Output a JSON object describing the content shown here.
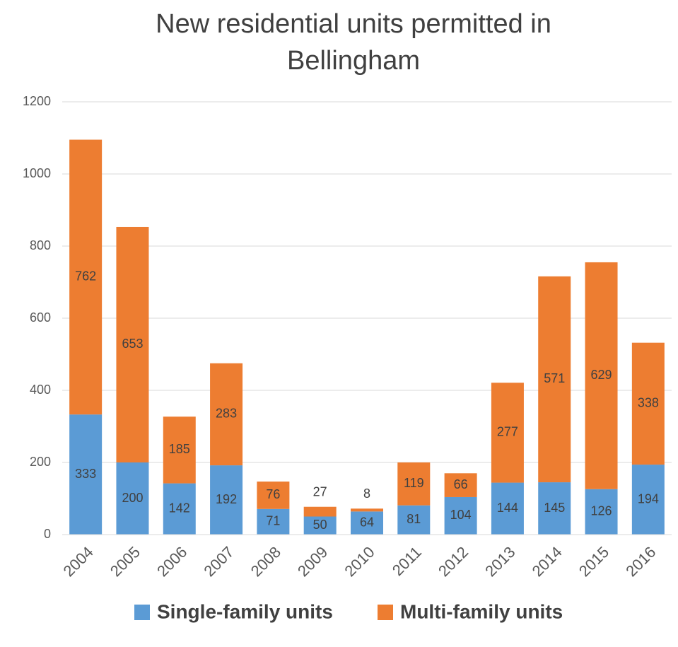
{
  "chart_data": {
    "type": "stacked_bar",
    "title": "New residential units permitted in Bellingham",
    "categories": [
      "2004",
      "2005",
      "2006",
      "2007",
      "2008",
      "2009",
      "2010",
      "2011",
      "2012",
      "2013",
      "2014",
      "2015",
      "2016"
    ],
    "series": [
      {
        "name": "Single-family units",
        "color": "#5b9bd5",
        "values": [
          333,
          200,
          142,
          192,
          71,
          50,
          64,
          81,
          104,
          144,
          145,
          126,
          194
        ]
      },
      {
        "name": "Multi-family units",
        "color": "#ed7d31",
        "values": [
          762,
          653,
          185,
          283,
          76,
          27,
          8,
          119,
          66,
          277,
          571,
          629,
          338
        ]
      }
    ],
    "ylim": [
      0,
      1200
    ],
    "yticks": [
      0,
      200,
      400,
      600,
      800,
      1000,
      1200
    ],
    "grid": true,
    "legend": "bottom"
  }
}
